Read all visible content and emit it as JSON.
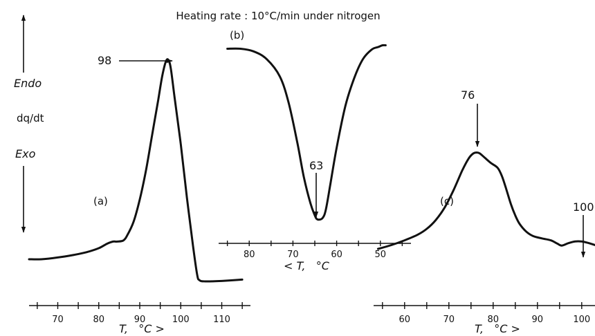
{
  "header": "Heating rate : 10°C/min under nitrogen",
  "y_axis": {
    "endo": "Endo",
    "label": "dq/dt",
    "exo": "Exo"
  },
  "chart_data": [
    {
      "type": "line",
      "panel": "(a)",
      "xlabel": "T,   °C >",
      "xlim": [
        63,
        117
      ],
      "xticks": [
        65,
        70,
        75,
        80,
        85,
        90,
        95,
        100,
        105,
        110,
        115
      ],
      "xtick_labels": [
        "70",
        "80",
        "90",
        "100",
        "110"
      ],
      "xtick_label_values": [
        70,
        80,
        90,
        100,
        110
      ],
      "ylim": [
        0,
        1
      ],
      "peak_label": "98",
      "peak_x": 97,
      "x": [
        63,
        66,
        70,
        74,
        77,
        80,
        82,
        83.5,
        84.5,
        86,
        87,
        88.5,
        90,
        91.5,
        93,
        94.5,
        95.5,
        96.4,
        97,
        97.6,
        98.5,
        100,
        101.5,
        103,
        104,
        104.6,
        106,
        110,
        115
      ],
      "y": [
        0.1,
        0.1,
        0.108,
        0.12,
        0.132,
        0.15,
        0.17,
        0.18,
        0.18,
        0.185,
        0.21,
        0.27,
        0.37,
        0.5,
        0.66,
        0.82,
        0.93,
        0.995,
        1.0,
        0.96,
        0.83,
        0.62,
        0.38,
        0.16,
        0.03,
        0.005,
        0.0,
        0.002,
        0.008
      ]
    },
    {
      "type": "line",
      "panel": "(b)",
      "xlabel": "< T,   °C",
      "x_reversed": true,
      "xlim": [
        87,
        43
      ],
      "xticks": [
        85,
        80,
        75,
        70,
        65,
        60,
        55,
        50,
        45
      ],
      "xtick_labels": [
        "80",
        "70",
        "60",
        "50"
      ],
      "xtick_label_values": [
        80,
        70,
        60,
        50
      ],
      "ylim": [
        0,
        1
      ],
      "peak_label": "63",
      "peak_x": 64,
      "x": [
        85,
        82,
        79,
        76,
        73,
        71,
        69,
        67.5,
        66,
        65,
        64.6,
        64,
        63.2,
        62.5,
        61.5,
        60,
        58,
        56,
        54,
        52,
        50.5,
        49.5,
        48.8
      ],
      "y": [
        0.99,
        0.99,
        0.975,
        0.93,
        0.83,
        0.68,
        0.45,
        0.25,
        0.1,
        0.03,
        0.01,
        0.005,
        0.015,
        0.06,
        0.2,
        0.42,
        0.66,
        0.82,
        0.93,
        0.985,
        1.0,
        1.01,
        1.01
      ]
    },
    {
      "type": "line",
      "panel": "(c)",
      "xlabel": "T,   °C >",
      "xlim": [
        53,
        103
      ],
      "xticks": [
        55,
        60,
        65,
        70,
        75,
        80,
        85,
        90,
        95,
        100
      ],
      "xtick_labels": [
        "60",
        "70",
        "80",
        "90",
        "100"
      ],
      "xtick_label_values": [
        60,
        70,
        80,
        90,
        100
      ],
      "ylim": [
        0,
        1
      ],
      "peak_label": "76",
      "peak_x": 76,
      "second_peak_label": "100",
      "second_peak_x": 100,
      "x": [
        54,
        57,
        60,
        63,
        65,
        67,
        69,
        71,
        73,
        74.5,
        75.5,
        76.3,
        77,
        78,
        79.5,
        81,
        82,
        83,
        84,
        85,
        86,
        87.5,
        89,
        91,
        93,
        94.5,
        95.5,
        97,
        98.5,
        100,
        101.5,
        103
      ],
      "y": [
        0.0,
        0.04,
        0.09,
        0.15,
        0.21,
        0.3,
        0.43,
        0.61,
        0.82,
        0.95,
        1.0,
        1.01,
        1.0,
        0.96,
        0.9,
        0.85,
        0.76,
        0.62,
        0.47,
        0.35,
        0.26,
        0.18,
        0.135,
        0.11,
        0.09,
        0.055,
        0.035,
        0.06,
        0.078,
        0.078,
        0.062,
        0.04
      ]
    }
  ]
}
